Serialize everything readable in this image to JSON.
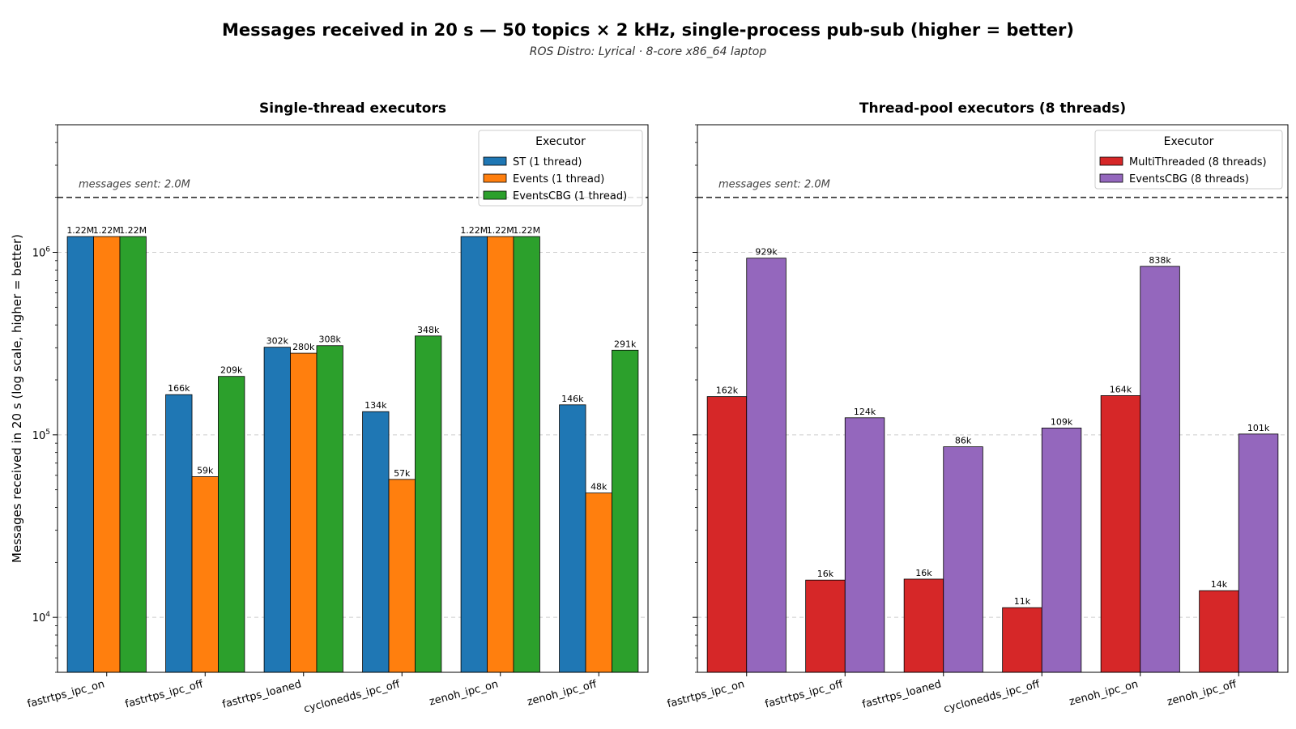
{
  "page": {
    "title": "Messages received in 20 s — 50 topics × 2 kHz, single-process pub-sub  (higher = better)",
    "subtitle": "ROS Distro: Lyrical · 8-core x86_64 laptop"
  },
  "chart_data": [
    {
      "type": "bar",
      "title": "Single-thread executors",
      "xlabel": "",
      "ylabel": "Messages received in 20 s  (log scale, higher = better)",
      "yscale": "log",
      "ylim": [
        5000,
        5000000
      ],
      "yticks": [
        10000,
        100000,
        1000000
      ],
      "ytick_labels": [
        {
          "base": "10",
          "exp": "4"
        },
        {
          "base": "10",
          "exp": "5"
        },
        {
          "base": "10",
          "exp": "6"
        }
      ],
      "grid": "y-dashed",
      "legend": {
        "title": "Executor",
        "position": "top-right"
      },
      "reference_line": {
        "value": 2000000,
        "label": "messages sent: 2.0M"
      },
      "categories": [
        "fastrtps_ipc_on",
        "fastrtps_ipc_off",
        "fastrtps_loaned",
        "cyclonedds_ipc_off",
        "zenoh_ipc_on",
        "zenoh_ipc_off"
      ],
      "series": [
        {
          "name": "ST (1 thread)",
          "color": "#1f77b4",
          "values": [
            1220000,
            166000,
            302000,
            134000,
            1220000,
            146000
          ],
          "labels": [
            "1.22M",
            "166k",
            "302k",
            "134k",
            "1.22M",
            "146k"
          ]
        },
        {
          "name": "Events (1 thread)",
          "color": "#ff7f0e",
          "values": [
            1220000,
            59000,
            280000,
            57000,
            1220000,
            48000
          ],
          "labels": [
            "1.22M",
            "59k",
            "280k",
            "57k",
            "1.22M",
            "48k"
          ]
        },
        {
          "name": "EventsCBG (1 thread)",
          "color": "#2ca02c",
          "values": [
            1220000,
            209000,
            308000,
            348000,
            1220000,
            291000
          ],
          "labels": [
            "1.22M",
            "209k",
            "308k",
            "348k",
            "1.22M",
            "291k"
          ]
        }
      ]
    },
    {
      "type": "bar",
      "title": "Thread-pool executors (8 threads)",
      "xlabel": "",
      "ylabel": "",
      "yscale": "log",
      "ylim": [
        5000,
        5000000
      ],
      "yticks": [
        10000,
        100000,
        1000000
      ],
      "ytick_labels": [],
      "grid": "y-dashed",
      "legend": {
        "title": "Executor",
        "position": "top-right"
      },
      "reference_line": {
        "value": 2000000,
        "label": "messages sent: 2.0M"
      },
      "categories": [
        "fastrtps_ipc_on",
        "fastrtps_ipc_off",
        "fastrtps_loaned",
        "cyclonedds_ipc_off",
        "zenoh_ipc_on",
        "zenoh_ipc_off"
      ],
      "series": [
        {
          "name": "MultiThreaded (8 threads)",
          "color": "#d62728",
          "values": [
            162000,
            16000,
            16200,
            11300,
            164000,
            14000
          ],
          "labels": [
            "162k",
            "16k",
            "16k",
            "11k",
            "164k",
            "14k"
          ]
        },
        {
          "name": "EventsCBG (8 threads)",
          "color": "#9467bd",
          "values": [
            929000,
            124000,
            86000,
            109000,
            838000,
            101000
          ],
          "labels": [
            "929k",
            "124k",
            "86k",
            "109k",
            "838k",
            "101k"
          ]
        }
      ]
    }
  ]
}
